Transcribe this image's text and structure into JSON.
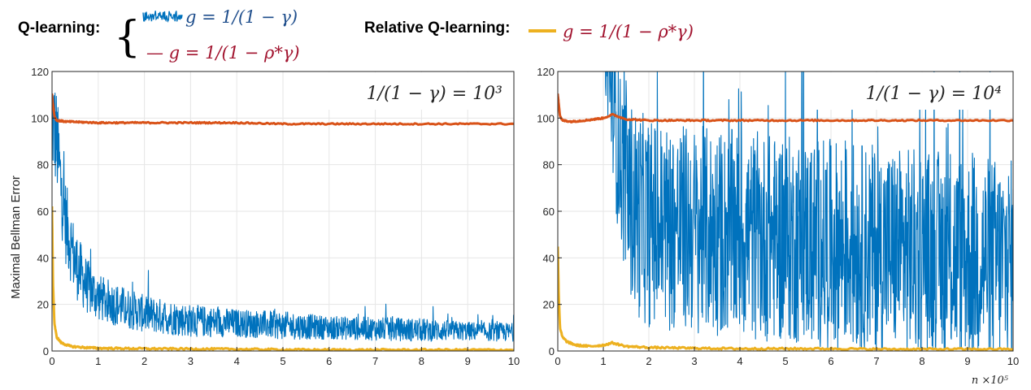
{
  "legend": {
    "qlearning_label": "Q-learning:",
    "relative_label": "Relative Q-learning:",
    "entries": [
      {
        "text": "g = 1/(1 − γ)",
        "color": "#0072BD",
        "style": "noisy"
      },
      {
        "text": "— g = 1/(1 − ρ*γ)",
        "color": "#A2142F",
        "style": "line"
      },
      {
        "text": "g = 1/(1 − ρ*γ)",
        "color": "#A2142F",
        "swatch": "#EDB120",
        "style": "line"
      }
    ]
  },
  "colors": {
    "q_standard": "#0072BD",
    "q_rho": "#D95319",
    "relative_q": "#EDB120",
    "legend_text_blue": "#1f4e8c",
    "legend_text_red": "#A2142F",
    "grid": "#e6e6e6",
    "axis": "#262626"
  },
  "chart_data": [
    {
      "type": "line",
      "annotation": "1/(1 − γ) = 10³",
      "ylabel": "Maximal Bellman Error",
      "xlabel": "",
      "xlim": [
        0,
        10
      ],
      "ylim": [
        0,
        120
      ],
      "xticks": [
        0,
        1,
        2,
        3,
        4,
        5,
        6,
        7,
        8,
        9,
        10
      ],
      "yticks": [
        0,
        20,
        40,
        60,
        80,
        100,
        120
      ],
      "grid": true,
      "series": [
        {
          "key": "q_standard",
          "color": "#0072BD",
          "noisy": true,
          "x": [
            0,
            0.1,
            0.2,
            0.3,
            0.5,
            0.75,
            1,
            1.5,
            2,
            3,
            4,
            5,
            6,
            7,
            8,
            9,
            10
          ],
          "y_center": [
            100,
            90,
            70,
            55,
            38,
            28,
            23,
            19,
            16,
            13,
            12,
            11,
            10,
            9.5,
            9,
            8.5,
            8
          ],
          "y_amplitude": [
            25,
            22,
            20,
            18,
            15,
            12,
            10,
            9,
            8,
            7,
            6,
            6,
            5,
            5,
            5,
            4,
            4
          ]
        },
        {
          "key": "q_rho",
          "color": "#D95319",
          "noisy": false,
          "x": [
            0,
            0.05,
            0.1,
            0.3,
            1,
            2,
            3,
            4,
            5,
            6,
            7,
            8,
            9,
            10
          ],
          "y": [
            110,
            101,
            99,
            98.5,
            98,
            98,
            98,
            98,
            97.5,
            97.5,
            97.5,
            97.5,
            97.5,
            97.5
          ]
        },
        {
          "key": "relative_q",
          "color": "#EDB120",
          "noisy": false,
          "x": [
            0,
            0.02,
            0.05,
            0.1,
            0.2,
            0.4,
            0.7,
            1,
            2,
            3,
            4,
            5,
            6,
            7,
            8,
            9,
            10
          ],
          "y": [
            62,
            30,
            12,
            6,
            3.5,
            2,
            1.5,
            1.2,
            1,
            0.9,
            0.8,
            0.6,
            0.5,
            0.5,
            0.5,
            0.5,
            0.5
          ]
        }
      ]
    },
    {
      "type": "line",
      "annotation": "1/(1 − γ) = 10⁴",
      "ylabel": "",
      "xlabel": "n",
      "x_multiplier": "×10⁵",
      "xlim": [
        0,
        10
      ],
      "ylim": [
        0,
        120
      ],
      "xticks": [
        0,
        1,
        2,
        3,
        4,
        5,
        6,
        7,
        8,
        9,
        10
      ],
      "yticks": [
        0,
        20,
        40,
        60,
        80,
        100,
        120
      ],
      "grid": true,
      "series": [
        {
          "key": "q_standard",
          "color": "#0072BD",
          "noisy": true,
          "x": [
            0,
            0.1,
            0.3,
            0.5,
            1,
            1.2,
            1.3,
            1.5,
            1.7,
            2,
            3,
            4,
            5,
            6,
            7,
            8,
            9,
            10
          ],
          "y_center": [
            130,
            130,
            130,
            130,
            130,
            110,
            90,
            70,
            60,
            55,
            52,
            50,
            48,
            46,
            44,
            42,
            40,
            38
          ],
          "y_amplitude": [
            10,
            10,
            10,
            10,
            10,
            30,
            35,
            40,
            45,
            45,
            45,
            45,
            45,
            45,
            45,
            45,
            45,
            45
          ]
        },
        {
          "key": "q_rho",
          "color": "#D95319",
          "noisy": false,
          "x": [
            0,
            0.05,
            0.1,
            0.3,
            0.6,
            1,
            1.2,
            1.5,
            2,
            3,
            4,
            5,
            6,
            7,
            8,
            9,
            10
          ],
          "y": [
            110,
            101,
            99,
            98.5,
            99,
            100,
            101.5,
            99.5,
            99,
            99,
            99,
            99,
            99,
            99,
            99,
            99,
            99
          ]
        },
        {
          "key": "relative_q",
          "color": "#EDB120",
          "noisy": false,
          "x": [
            0,
            0.02,
            0.05,
            0.1,
            0.2,
            0.4,
            0.7,
            1,
            1.2,
            1.5,
            2,
            3,
            4,
            5,
            6,
            7,
            8,
            9,
            10
          ],
          "y": [
            45,
            25,
            10,
            6,
            4,
            2.5,
            2,
            2.5,
            3.5,
            2,
            1.5,
            1.2,
            1,
            1,
            1,
            0.8,
            0.8,
            0.8,
            0.8
          ]
        }
      ]
    }
  ]
}
